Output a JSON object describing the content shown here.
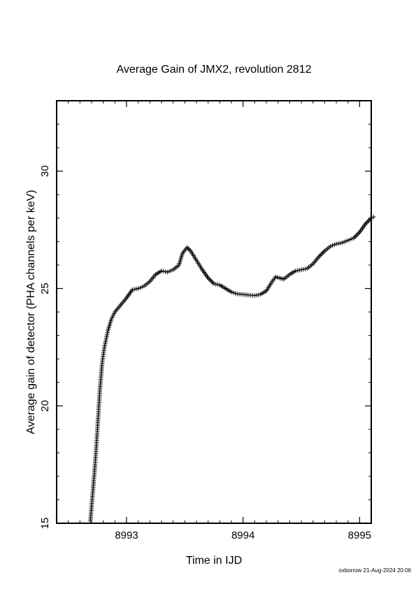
{
  "footer": {
    "stamp": "oxborrow 21-Aug-2024 20:06"
  },
  "chart_data": {
    "type": "scatter",
    "marker": "+",
    "title": "Average Gain of JMX2, revolution 2812",
    "xlabel": "Time in IJD",
    "ylabel": "Average gain of detector (PHA channels per keV)",
    "xlim": [
      8992.4,
      8995.1
    ],
    "ylim": [
      15,
      33
    ],
    "x_ticks": [
      8993,
      8994,
      8995
    ],
    "x_tick_labels": [
      "8993",
      "8994",
      "8995"
    ],
    "y_ticks": [
      15,
      20,
      25,
      30
    ],
    "y_tick_labels": [
      "15",
      "20",
      "25",
      "30"
    ],
    "grid": false,
    "color": "#000000",
    "series": [
      {
        "points": [
          [
            8992.69,
            15.1
          ],
          [
            8992.71,
            16.3
          ],
          [
            8992.73,
            17.5
          ],
          [
            8992.75,
            19.0
          ],
          [
            8992.77,
            20.6
          ],
          [
            8992.79,
            21.8
          ],
          [
            8992.81,
            22.5
          ],
          [
            8992.84,
            23.2
          ],
          [
            8992.87,
            23.7
          ],
          [
            8992.9,
            24.0
          ],
          [
            8992.95,
            24.3
          ],
          [
            8993.0,
            24.6
          ],
          [
            8993.05,
            24.95
          ],
          [
            8993.1,
            25.0
          ],
          [
            8993.15,
            25.1
          ],
          [
            8993.2,
            25.3
          ],
          [
            8993.25,
            25.6
          ],
          [
            8993.3,
            25.75
          ],
          [
            8993.35,
            25.7
          ],
          [
            8993.4,
            25.8
          ],
          [
            8993.45,
            26.0
          ],
          [
            8993.48,
            26.5
          ],
          [
            8993.52,
            26.75
          ],
          [
            8993.55,
            26.6
          ],
          [
            8993.6,
            26.2
          ],
          [
            8993.65,
            25.8
          ],
          [
            8993.7,
            25.45
          ],
          [
            8993.75,
            25.2
          ],
          [
            8993.8,
            25.15
          ],
          [
            8993.85,
            25.0
          ],
          [
            8993.9,
            24.85
          ],
          [
            8993.95,
            24.77
          ],
          [
            8994.0,
            24.75
          ],
          [
            8994.05,
            24.72
          ],
          [
            8994.1,
            24.7
          ],
          [
            8994.15,
            24.75
          ],
          [
            8994.2,
            24.9
          ],
          [
            8994.25,
            25.3
          ],
          [
            8994.28,
            25.5
          ],
          [
            8994.31,
            25.45
          ],
          [
            8994.35,
            25.4
          ],
          [
            8994.4,
            25.6
          ],
          [
            8994.45,
            25.75
          ],
          [
            8994.5,
            25.8
          ],
          [
            8994.55,
            25.85
          ],
          [
            8994.6,
            26.05
          ],
          [
            8994.65,
            26.35
          ],
          [
            8994.7,
            26.6
          ],
          [
            8994.75,
            26.8
          ],
          [
            8994.8,
            26.9
          ],
          [
            8994.85,
            26.95
          ],
          [
            8994.9,
            27.05
          ],
          [
            8994.95,
            27.15
          ],
          [
            8995.0,
            27.4
          ],
          [
            8995.05,
            27.75
          ],
          [
            8995.1,
            28.0
          ],
          [
            8995.12,
            28.05
          ]
        ]
      }
    ]
  }
}
